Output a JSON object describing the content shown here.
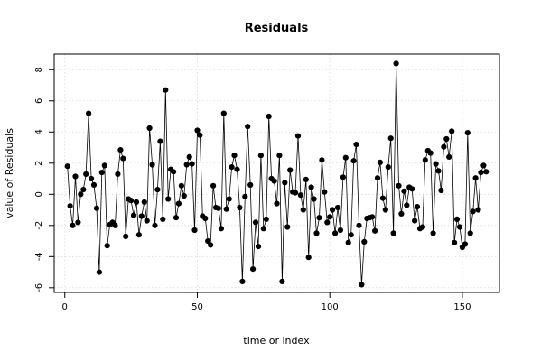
{
  "chart_data": {
    "type": "line",
    "title": "Residuals",
    "xlabel": "time or index",
    "ylabel": "value of Residuals",
    "xlim": [
      -4,
      164
    ],
    "ylim": [
      -6.3,
      9.0
    ],
    "xticks": [
      0,
      50,
      100,
      150
    ],
    "yticks": [
      -6,
      -4,
      -2,
      0,
      2,
      4,
      6,
      8
    ],
    "grid": true,
    "markers": "filled-circle",
    "series": [
      {
        "x": [
          1,
          2,
          3,
          4,
          5,
          6,
          7,
          8,
          9,
          10,
          11,
          12,
          13,
          14,
          15,
          16,
          17,
          18,
          19,
          20,
          21,
          22,
          23,
          24,
          25,
          26,
          27,
          28,
          29,
          30,
          31,
          32,
          33,
          34,
          35,
          36,
          37,
          38,
          39,
          40,
          41,
          42,
          43,
          44,
          45,
          46,
          47,
          48,
          49,
          50,
          51,
          52,
          53,
          54,
          55,
          56,
          57,
          58,
          59,
          60,
          61,
          62,
          63,
          64,
          65,
          66,
          67,
          68,
          69,
          70,
          71,
          72,
          73,
          74,
          75,
          76,
          77,
          78,
          79,
          80,
          81,
          82,
          83,
          84,
          85,
          86,
          87,
          88,
          89,
          90,
          91,
          92,
          93,
          94,
          95,
          96,
          97,
          98,
          99,
          100,
          101,
          102,
          103,
          104,
          105,
          106,
          107,
          108,
          109,
          110,
          111,
          112,
          113,
          114,
          115,
          116,
          117,
          118,
          119,
          120,
          121,
          122,
          123,
          124,
          125,
          126,
          127,
          128,
          129,
          130,
          131,
          132,
          133,
          134,
          135,
          136,
          137,
          138,
          139,
          140,
          141,
          142,
          143,
          144,
          145,
          146,
          147,
          148,
          149,
          150,
          151,
          152,
          153,
          154,
          155,
          156,
          157,
          158,
          159
        ],
        "y": [
          1.8,
          -0.75,
          -2.0,
          1.15,
          -1.8,
          0.0,
          0.3,
          1.3,
          5.2,
          1.0,
          0.6,
          -0.9,
          -5.0,
          1.4,
          1.85,
          -3.3,
          -1.95,
          -1.8,
          -2.0,
          1.3,
          2.85,
          2.3,
          -2.7,
          -0.3,
          -0.4,
          -1.35,
          -0.5,
          -2.6,
          -1.4,
          -0.5,
          -1.7,
          4.25,
          1.9,
          -2.0,
          0.3,
          3.4,
          -1.6,
          6.7,
          -0.3,
          1.6,
          1.45,
          -1.5,
          -0.6,
          0.55,
          -0.1,
          1.9,
          2.4,
          1.95,
          -2.3,
          4.1,
          3.8,
          -1.4,
          -1.55,
          -3.0,
          -3.25,
          0.55,
          -0.85,
          -0.9,
          -2.2,
          5.2,
          -0.95,
          -0.3,
          1.75,
          2.5,
          1.6,
          -0.85,
          -5.6,
          -0.15,
          4.35,
          0.6,
          -4.8,
          -1.8,
          -3.35,
          2.5,
          -2.2,
          -1.6,
          5.0,
          1.0,
          0.85,
          -0.6,
          2.5,
          -5.6,
          0.75,
          -2.1,
          1.55,
          0.15,
          0.1,
          3.75,
          -0.05,
          -1.0,
          0.95,
          -4.05,
          0.45,
          -0.3,
          -2.5,
          -1.5,
          2.2,
          0.15,
          -1.8,
          -1.45,
          -1.0,
          -2.5,
          -0.85,
          -2.3,
          1.1,
          2.35,
          -3.1,
          -2.6,
          2.15,
          3.2,
          -2.0,
          -5.8,
          -3.05,
          -1.55,
          -1.5,
          -1.45,
          -2.35,
          1.05,
          2.05,
          -0.25,
          -1.0,
          1.75,
          3.6,
          -2.5,
          8.4,
          0.55,
          -1.25,
          0.2,
          -0.7,
          0.45,
          0.35,
          -1.7,
          -0.8,
          -2.2,
          -2.1,
          2.2,
          2.8,
          2.65,
          -2.5,
          1.95,
          1.5,
          0.25,
          3.05,
          3.55,
          2.4,
          4.05,
          -3.1,
          -1.6,
          -2.1,
          -3.4,
          -3.2,
          3.95,
          -2.5,
          -1.1,
          1.05,
          -1.0,
          1.4,
          1.85,
          1.45
        ]
      }
    ]
  }
}
